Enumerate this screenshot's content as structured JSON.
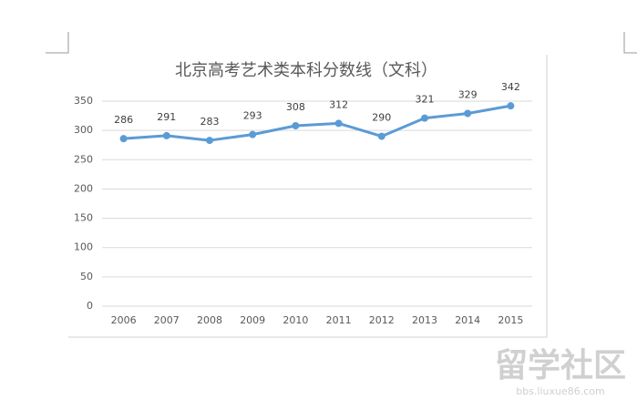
{
  "chart_data": {
    "type": "line",
    "title": "北京高考艺术类本科分数线（文科）",
    "categories": [
      "2006",
      "2007",
      "2008",
      "2009",
      "2010",
      "2011",
      "2012",
      "2013",
      "2014",
      "2015"
    ],
    "values": [
      286,
      291,
      283,
      293,
      308,
      312,
      290,
      321,
      329,
      342
    ],
    "color": "#5b9bd5",
    "ylim": [
      0,
      350
    ],
    "yticks": [
      0,
      50,
      100,
      150,
      200,
      250,
      300,
      350
    ],
    "grid": true,
    "data_labels": true
  },
  "watermark": {
    "name": "留学社区",
    "url": "bbs.liuxue86.com"
  }
}
